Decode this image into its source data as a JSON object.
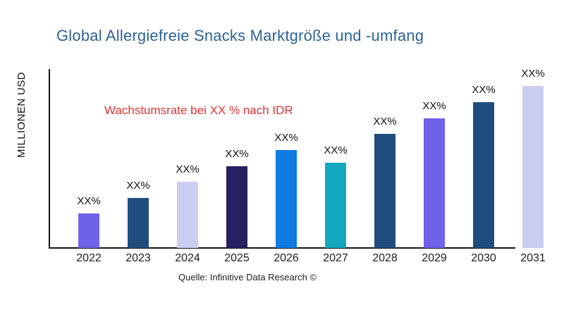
{
  "chart": {
    "title": "Global Allergiefreie Snacks Marktgröße und -umfang",
    "title_color": "#2D6394",
    "annotation": "Wachstumsrate bei XX % nach IDR",
    "annotation_color": "#E23232",
    "y_axis_label": "MILLIONEN USD",
    "source": "Quelle: Infinitive Data Research ©"
  },
  "chart_data": {
    "type": "bar",
    "title": "Global Allergiefreie Snacks Marktgröße und -umfang",
    "xlabel": "",
    "ylabel": "MILLIONEN USD",
    "annotation": "Wachstumsrate bei XX % nach IDR",
    "legend": "none",
    "grid": false,
    "y_axis_ticks": "none (values masked as XX%)",
    "categories": [
      "2022",
      "2023",
      "2024",
      "2025",
      "2026",
      "2027",
      "2028",
      "2029",
      "2030",
      "2031"
    ],
    "bar_labels": [
      "XX%",
      "XX%",
      "XX%",
      "XX%",
      "XX%",
      "XX%",
      "XX%",
      "XX%",
      "XX%",
      "XX%"
    ],
    "values": [
      49,
      71,
      94,
      116,
      139,
      121,
      162,
      184,
      207,
      230
    ],
    "values_unit": "relative bar height in px (numeric values not shown in chart)",
    "bar_colors": [
      "#6F62E9",
      "#1F4E7E",
      "#CACEF0",
      "#262163",
      "#107CE2",
      "#14A8C0",
      "#1F4E7E",
      "#6F62E9",
      "#1F4E7E",
      "#CACEF0"
    ],
    "axis_color": "#161616"
  }
}
